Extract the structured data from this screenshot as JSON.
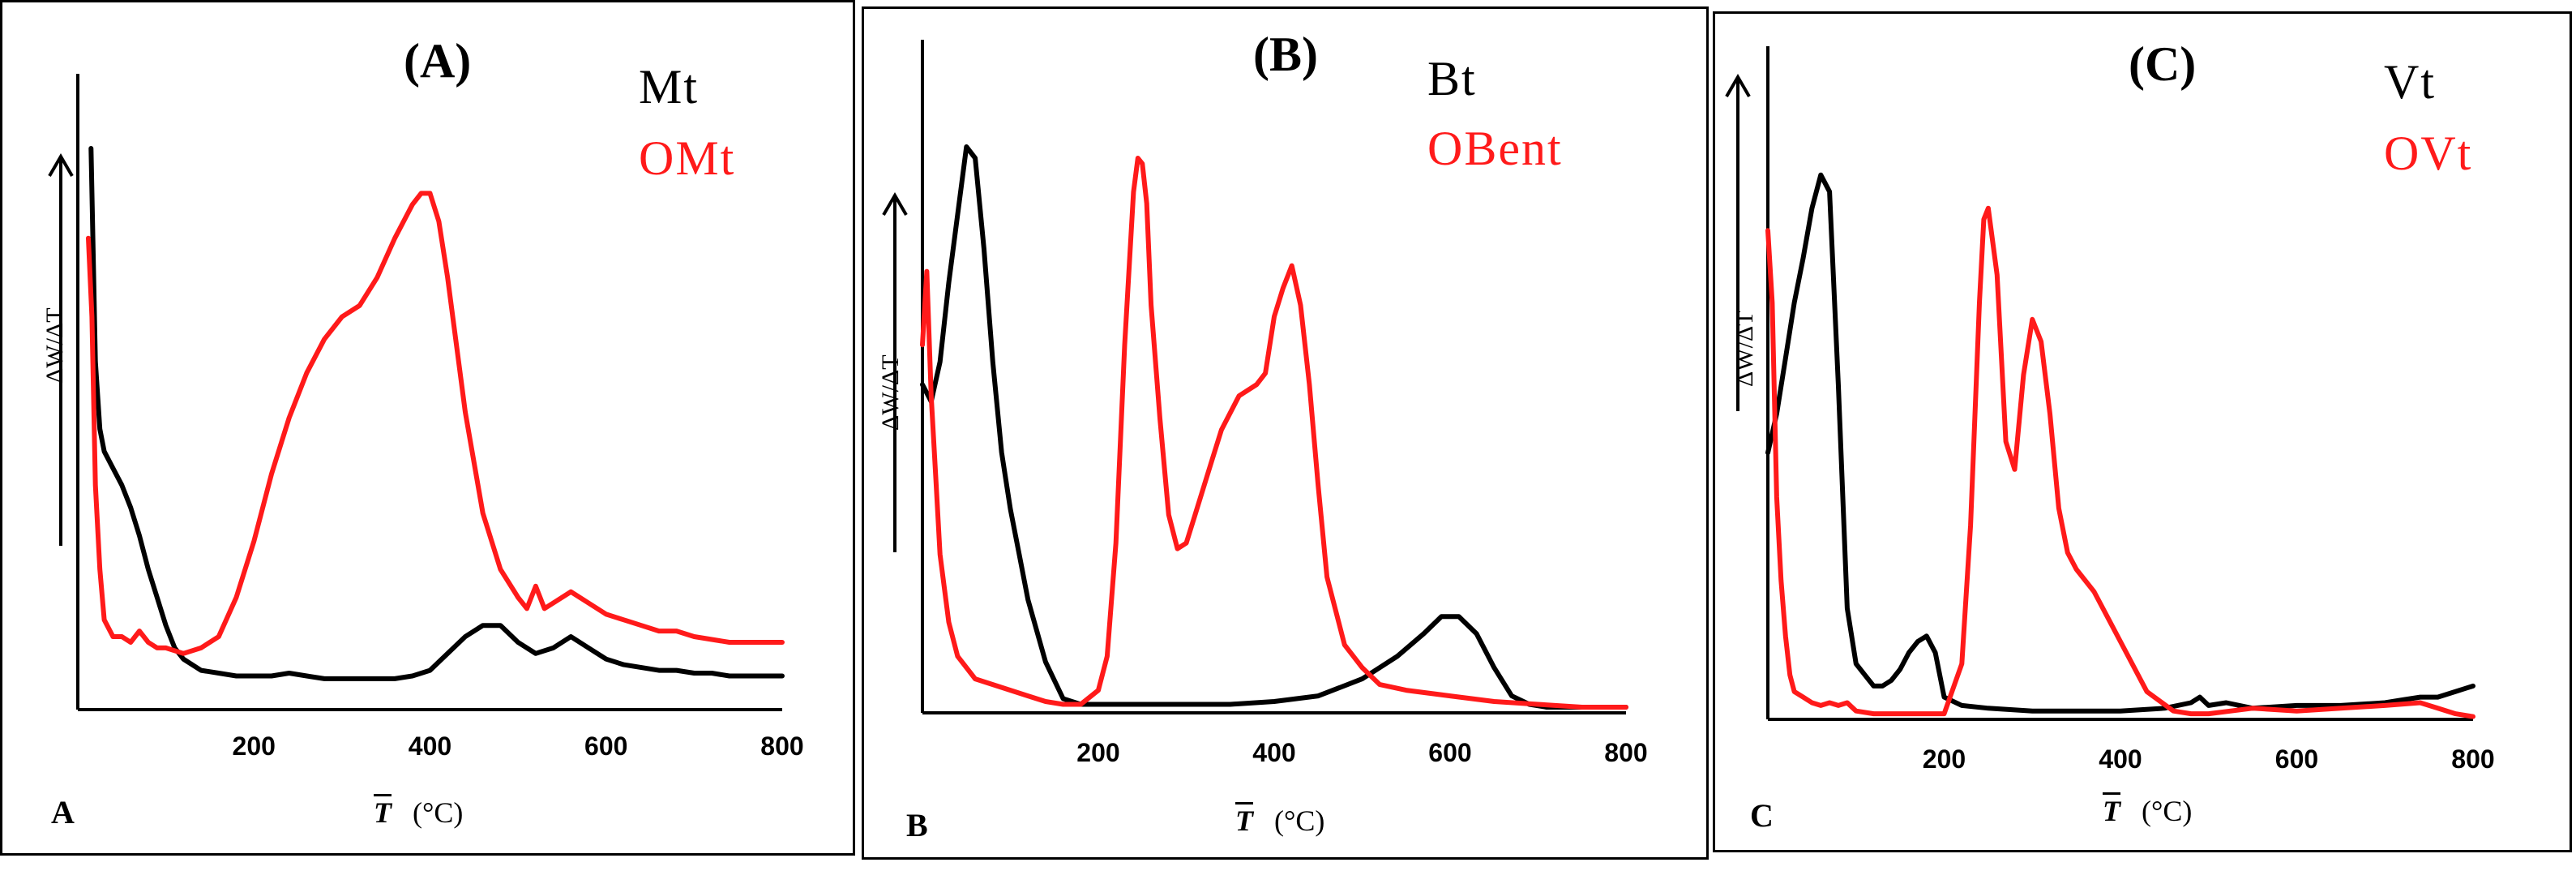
{
  "x_axis_unit": "(°C)",
  "x_axis_symbol": "T",
  "y_axis_label": "ΔW/ΔT",
  "chart_data": [
    {
      "type": "line",
      "title": "(A)",
      "corner_label": "A",
      "xlabel": "T (°C)",
      "ylabel": "ΔW/ΔT",
      "xlim": [
        0,
        800
      ],
      "ylim": [
        0,
        100
      ],
      "xticks": [
        200,
        400,
        600,
        800
      ],
      "series": [
        {
          "name": "Mt",
          "color": "#000000",
          "x": [
            15,
            20,
            25,
            30,
            40,
            50,
            60,
            70,
            80,
            90,
            100,
            110,
            120,
            140,
            160,
            180,
            200,
            220,
            240,
            260,
            280,
            300,
            320,
            340,
            360,
            380,
            400,
            420,
            440,
            460,
            480,
            500,
            520,
            540,
            560,
            580,
            600,
            620,
            640,
            660,
            680,
            700,
            720,
            740,
            760,
            780,
            800
          ],
          "y": [
            100,
            62,
            50,
            46,
            43,
            40,
            36,
            31,
            25,
            20,
            15,
            11,
            9,
            7,
            6.5,
            6,
            6,
            6,
            6.5,
            6,
            5.5,
            5.5,
            5.5,
            5.5,
            5.5,
            6,
            7,
            10,
            13,
            15,
            15,
            12,
            10,
            11,
            13,
            11,
            9,
            8,
            7.5,
            7,
            7,
            6.5,
            6.5,
            6,
            6,
            6,
            6
          ]
        },
        {
          "name": "OMt",
          "color": "#ff1a1a",
          "x": [
            12,
            16,
            20,
            25,
            30,
            40,
            50,
            60,
            70,
            80,
            90,
            100,
            120,
            140,
            160,
            180,
            200,
            220,
            240,
            260,
            280,
            300,
            320,
            340,
            360,
            380,
            390,
            400,
            410,
            420,
            440,
            460,
            480,
            500,
            510,
            520,
            530,
            540,
            560,
            580,
            600,
            620,
            640,
            660,
            680,
            700,
            720,
            740,
            760,
            780,
            800
          ],
          "y": [
            84,
            70,
            40,
            25,
            16,
            13,
            13,
            12,
            14,
            12,
            11,
            11,
            10,
            11,
            13,
            20,
            30,
            42,
            52,
            60,
            66,
            70,
            72,
            77,
            84,
            90,
            92,
            92,
            87,
            77,
            53,
            35,
            25,
            20,
            18,
            22,
            18,
            19,
            21,
            19,
            17,
            16,
            15,
            14,
            14,
            13,
            12.5,
            12,
            12,
            12,
            12
          ]
        }
      ]
    },
    {
      "type": "line",
      "title": "(B)",
      "corner_label": "B",
      "xlabel": "T (°C)",
      "ylabel": "ΔW/ΔT",
      "xlim": [
        0,
        800
      ],
      "ylim": [
        0,
        100
      ],
      "xticks": [
        200,
        400,
        600,
        800
      ],
      "series": [
        {
          "name": "Bt",
          "color": "#000000",
          "x": [
            0,
            10,
            20,
            30,
            40,
            50,
            60,
            70,
            80,
            90,
            100,
            110,
            120,
            140,
            160,
            180,
            200,
            250,
            300,
            350,
            400,
            450,
            500,
            540,
            570,
            590,
            610,
            630,
            650,
            670,
            690,
            710,
            750,
            800
          ],
          "y": [
            58,
            55,
            62,
            76,
            88,
            100,
            98,
            82,
            62,
            46,
            36,
            28,
            20,
            9,
            2.5,
            1.5,
            1.5,
            1.5,
            1.5,
            1.5,
            2,
            3,
            6,
            10,
            14,
            17,
            17,
            14,
            8,
            3,
            1.5,
            1,
            1,
            1
          ]
        },
        {
          "name": "OBent",
          "color": "#ff1a1a",
          "x": [
            0,
            5,
            10,
            15,
            20,
            30,
            40,
            60,
            80,
            100,
            120,
            140,
            160,
            180,
            200,
            210,
            220,
            230,
            240,
            245,
            250,
            255,
            260,
            270,
            280,
            290,
            300,
            310,
            320,
            330,
            340,
            360,
            380,
            390,
            400,
            410,
            420,
            430,
            440,
            450,
            460,
            480,
            500,
            520,
            550,
            600,
            650,
            700,
            750,
            800
          ],
          "y": [
            65,
            78,
            56,
            42,
            28,
            16,
            10,
            6,
            5,
            4,
            3,
            2,
            1.5,
            1.5,
            4,
            10,
            30,
            65,
            92,
            98,
            97,
            90,
            72,
            52,
            35,
            29,
            30,
            35,
            40,
            45,
            50,
            56,
            58,
            60,
            70,
            75,
            79,
            72,
            58,
            40,
            24,
            12,
            8,
            5,
            4,
            3,
            2,
            1.5,
            1,
            1
          ]
        }
      ]
    },
    {
      "type": "line",
      "title": "(C)",
      "corner_label": "C",
      "xlabel": "T (°C)",
      "ylabel": "ΔW/ΔT",
      "xlim": [
        0,
        800
      ],
      "ylim": [
        0,
        100
      ],
      "xticks": [
        200,
        400,
        600,
        800
      ],
      "series": [
        {
          "name": "Vt",
          "color": "#000000",
          "x": [
            0,
            10,
            20,
            30,
            40,
            50,
            60,
            70,
            80,
            90,
            100,
            110,
            120,
            130,
            140,
            150,
            160,
            170,
            180,
            190,
            200,
            220,
            250,
            300,
            350,
            400,
            450,
            480,
            490,
            500,
            520,
            550,
            600,
            650,
            700,
            720,
            740,
            760,
            780,
            790,
            800
          ],
          "y": [
            48,
            55,
            65,
            75,
            83,
            92,
            98,
            95,
            60,
            20,
            10,
            8,
            6,
            6,
            7,
            9,
            12,
            14,
            15,
            12,
            4,
            2.5,
            2,
            1.5,
            1.5,
            1.5,
            2,
            3,
            4,
            2.5,
            3,
            2,
            2.5,
            2.5,
            3,
            3.5,
            4,
            4,
            5,
            5.5,
            6
          ]
        },
        {
          "name": "OVt",
          "color": "#ff1a1a",
          "x": [
            0,
            5,
            10,
            15,
            20,
            25,
            30,
            40,
            50,
            60,
            70,
            80,
            90,
            100,
            120,
            140,
            160,
            180,
            200,
            220,
            230,
            240,
            245,
            250,
            260,
            270,
            280,
            290,
            300,
            310,
            320,
            330,
            340,
            350,
            370,
            400,
            430,
            460,
            480,
            500,
            550,
            600,
            650,
            700,
            740,
            760,
            780,
            800
          ],
          "y": [
            88,
            75,
            40,
            25,
            15,
            8,
            5,
            4,
            3,
            2.5,
            3,
            2.5,
            3,
            1.5,
            1,
            1,
            1,
            1,
            1,
            10,
            35,
            75,
            90,
            92,
            80,
            50,
            45,
            62,
            72,
            68,
            55,
            38,
            30,
            27,
            23,
            14,
            5,
            1.5,
            1,
            1,
            2,
            1.5,
            2,
            2.5,
            3,
            2,
            1,
            0.5
          ]
        }
      ]
    }
  ]
}
